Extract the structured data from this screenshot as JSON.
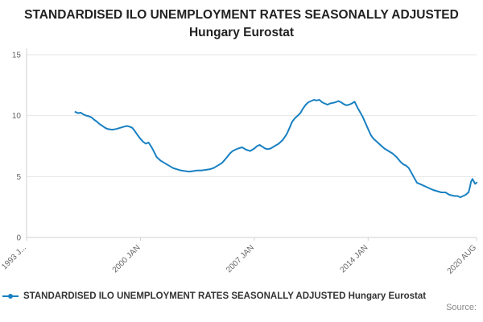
{
  "title": "STANDARDISED ILO UNEMPLOYMENT RATES SEASONALLY ADJUSTED Hungary Eurostat",
  "legend": {
    "label": "STANDARDISED ILO UNEMPLOYMENT RATES SEASONALLY ADJUSTED Hungary Eurostat"
  },
  "source_label": "Source:",
  "colors": {
    "line": "#1880c2",
    "grid": "#e6e6e6",
    "axis": "#d0d0d0",
    "tick_text": "#666666"
  },
  "chart_data": {
    "type": "line",
    "title": "STANDARDISED ILO UNEMPLOYMENT RATES SEASONALLY ADJUSTED Hungary Eurostat",
    "xlabel": "",
    "ylabel": "",
    "xlim": [
      1993,
      2020.667
    ],
    "ylim": [
      0,
      15
    ],
    "yticks": [
      0,
      5,
      10,
      15
    ],
    "xticks": [
      {
        "x": 1993.0,
        "label": "1993 J..."
      },
      {
        "x": 2000.0,
        "label": "2000 JAN"
      },
      {
        "x": 2007.0,
        "label": "2007 JAN"
      },
      {
        "x": 2014.0,
        "label": "2014 JAN"
      },
      {
        "x": 2020.667,
        "label": "2020 AUG"
      }
    ],
    "grid": true,
    "legend_position": "bottom",
    "series": [
      {
        "name": "STANDARDISED ILO UNEMPLOYMENT RATES SEASONALLY ADJUSTED Hungary Eurostat",
        "points": [
          [
            1996.0,
            10.3
          ],
          [
            1996.17,
            10.2
          ],
          [
            1996.33,
            10.25
          ],
          [
            1996.5,
            10.1
          ],
          [
            1996.67,
            10.0
          ],
          [
            1996.83,
            9.95
          ],
          [
            1997.0,
            9.85
          ],
          [
            1997.17,
            9.65
          ],
          [
            1997.33,
            9.5
          ],
          [
            1997.5,
            9.3
          ],
          [
            1997.67,
            9.15
          ],
          [
            1997.83,
            9.0
          ],
          [
            1998.0,
            8.9
          ],
          [
            1998.25,
            8.85
          ],
          [
            1998.5,
            8.9
          ],
          [
            1998.75,
            9.0
          ],
          [
            1999.0,
            9.1
          ],
          [
            1999.17,
            9.15
          ],
          [
            1999.33,
            9.1
          ],
          [
            1999.5,
            9.0
          ],
          [
            1999.67,
            8.7
          ],
          [
            1999.83,
            8.4
          ],
          [
            2000.0,
            8.1
          ],
          [
            2000.17,
            7.85
          ],
          [
            2000.33,
            7.7
          ],
          [
            2000.5,
            7.8
          ],
          [
            2000.67,
            7.45
          ],
          [
            2000.83,
            7.05
          ],
          [
            2001.0,
            6.6
          ],
          [
            2001.25,
            6.3
          ],
          [
            2001.5,
            6.1
          ],
          [
            2001.75,
            5.9
          ],
          [
            2002.0,
            5.7
          ],
          [
            2002.25,
            5.6
          ],
          [
            2002.5,
            5.5
          ],
          [
            2002.75,
            5.45
          ],
          [
            2003.0,
            5.4
          ],
          [
            2003.25,
            5.45
          ],
          [
            2003.5,
            5.5
          ],
          [
            2003.75,
            5.5
          ],
          [
            2004.0,
            5.55
          ],
          [
            2004.25,
            5.6
          ],
          [
            2004.5,
            5.7
          ],
          [
            2004.75,
            5.9
          ],
          [
            2005.0,
            6.1
          ],
          [
            2005.17,
            6.35
          ],
          [
            2005.33,
            6.6
          ],
          [
            2005.5,
            6.9
          ],
          [
            2005.67,
            7.1
          ],
          [
            2005.83,
            7.2
          ],
          [
            2006.0,
            7.3
          ],
          [
            2006.25,
            7.4
          ],
          [
            2006.5,
            7.2
          ],
          [
            2006.75,
            7.1
          ],
          [
            2007.0,
            7.3
          ],
          [
            2007.17,
            7.5
          ],
          [
            2007.33,
            7.6
          ],
          [
            2007.5,
            7.45
          ],
          [
            2007.67,
            7.3
          ],
          [
            2007.83,
            7.25
          ],
          [
            2008.0,
            7.3
          ],
          [
            2008.25,
            7.5
          ],
          [
            2008.5,
            7.7
          ],
          [
            2008.75,
            8.0
          ],
          [
            2009.0,
            8.5
          ],
          [
            2009.17,
            9.0
          ],
          [
            2009.33,
            9.5
          ],
          [
            2009.5,
            9.8
          ],
          [
            2009.67,
            10.0
          ],
          [
            2009.83,
            10.2
          ],
          [
            2010.0,
            10.6
          ],
          [
            2010.17,
            10.9
          ],
          [
            2010.33,
            11.1
          ],
          [
            2010.5,
            11.2
          ],
          [
            2010.67,
            11.3
          ],
          [
            2010.83,
            11.25
          ],
          [
            2011.0,
            11.3
          ],
          [
            2011.17,
            11.1
          ],
          [
            2011.33,
            11.0
          ],
          [
            2011.5,
            10.9
          ],
          [
            2011.67,
            11.0
          ],
          [
            2011.83,
            11.05
          ],
          [
            2012.0,
            11.1
          ],
          [
            2012.17,
            11.2
          ],
          [
            2012.33,
            11.1
          ],
          [
            2012.5,
            10.95
          ],
          [
            2012.67,
            10.85
          ],
          [
            2012.83,
            10.9
          ],
          [
            2013.0,
            11.0
          ],
          [
            2013.17,
            11.15
          ],
          [
            2013.33,
            10.7
          ],
          [
            2013.5,
            10.3
          ],
          [
            2013.67,
            9.9
          ],
          [
            2013.83,
            9.4
          ],
          [
            2014.0,
            8.9
          ],
          [
            2014.17,
            8.4
          ],
          [
            2014.33,
            8.1
          ],
          [
            2014.5,
            7.9
          ],
          [
            2014.67,
            7.7
          ],
          [
            2014.83,
            7.5
          ],
          [
            2015.0,
            7.3
          ],
          [
            2015.25,
            7.1
          ],
          [
            2015.5,
            6.9
          ],
          [
            2015.75,
            6.6
          ],
          [
            2016.0,
            6.2
          ],
          [
            2016.17,
            6.0
          ],
          [
            2016.33,
            5.9
          ],
          [
            2016.5,
            5.7
          ],
          [
            2016.67,
            5.3
          ],
          [
            2016.83,
            4.9
          ],
          [
            2017.0,
            4.5
          ],
          [
            2017.17,
            4.4
          ],
          [
            2017.33,
            4.3
          ],
          [
            2017.5,
            4.2
          ],
          [
            2017.67,
            4.1
          ],
          [
            2017.83,
            4.0
          ],
          [
            2018.0,
            3.9
          ],
          [
            2018.25,
            3.8
          ],
          [
            2018.5,
            3.7
          ],
          [
            2018.75,
            3.7
          ],
          [
            2019.0,
            3.5
          ],
          [
            2019.17,
            3.45
          ],
          [
            2019.33,
            3.4
          ],
          [
            2019.5,
            3.4
          ],
          [
            2019.67,
            3.3
          ],
          [
            2019.83,
            3.4
          ],
          [
            2020.0,
            3.5
          ],
          [
            2020.08,
            3.6
          ],
          [
            2020.17,
            3.7
          ],
          [
            2020.25,
            4.1
          ],
          [
            2020.33,
            4.6
          ],
          [
            2020.42,
            4.8
          ],
          [
            2020.5,
            4.6
          ],
          [
            2020.58,
            4.4
          ],
          [
            2020.67,
            4.5
          ]
        ]
      }
    ]
  }
}
